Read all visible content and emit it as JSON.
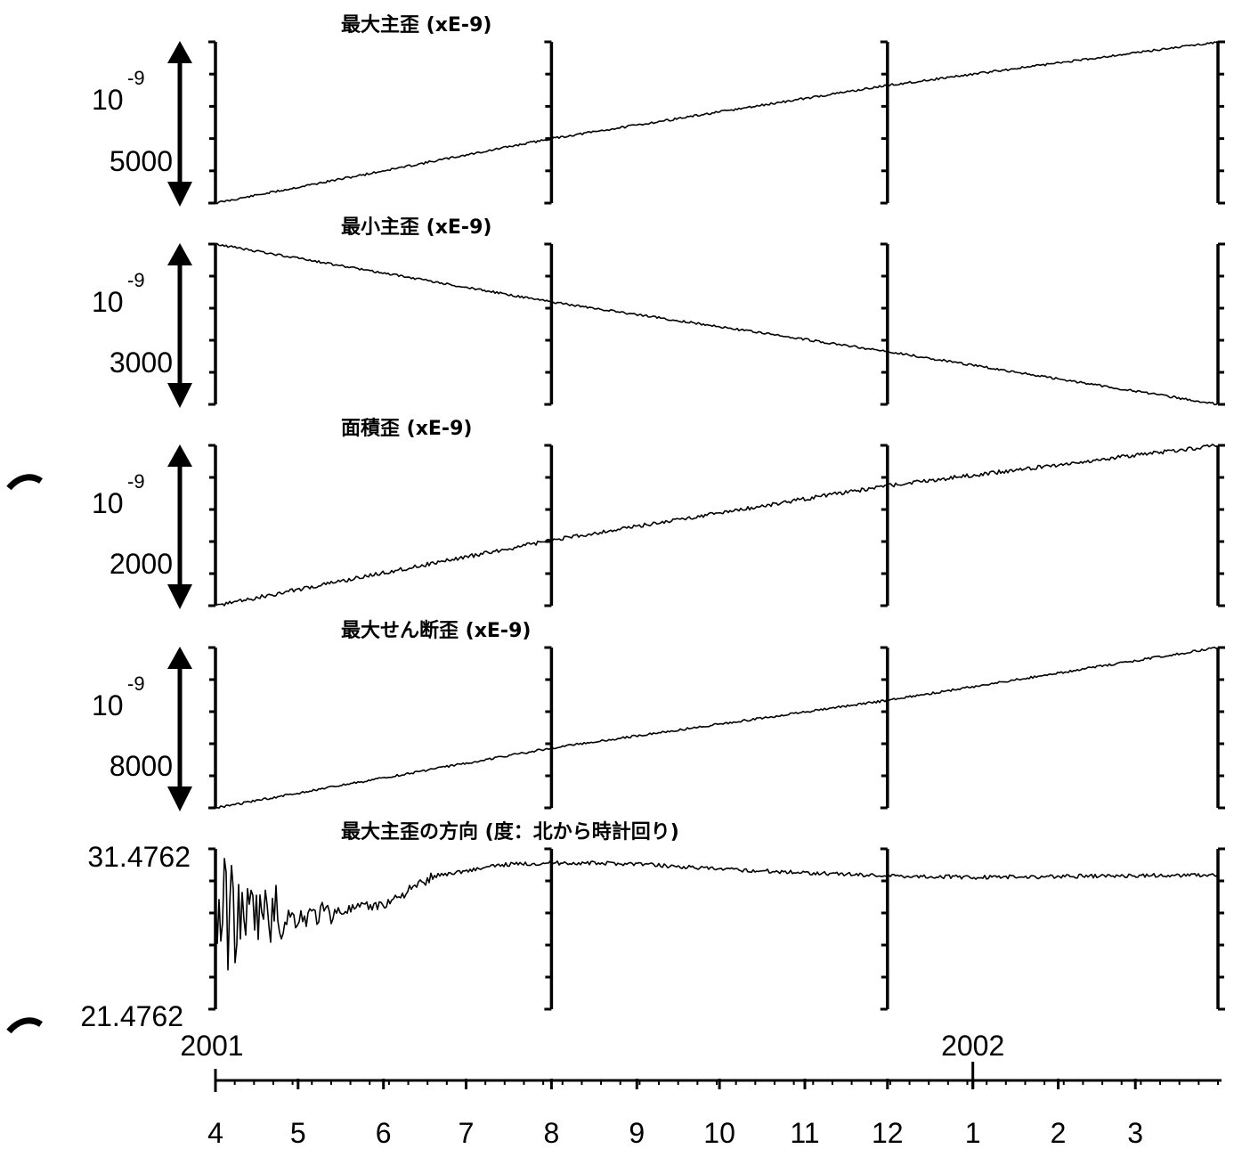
{
  "chart_data": {
    "type": "line",
    "x_unit": "month",
    "x_range": [
      "2001-04",
      "2002-03"
    ],
    "panels": [
      {
        "title": "最大主歪 (xE-9)",
        "scale_prefix": "10",
        "scale_exp": "-9",
        "scale_value": "5000",
        "series": [
          {
            "values": [
              [
                "2001-04-01",
                0
              ],
              [
                "2001-08-01",
                4000
              ],
              [
                "2001-12-01",
                7300
              ],
              [
                "2002-03-31",
                10000
              ]
            ]
          }
        ]
      },
      {
        "title": "最小主歪 (xE-9)",
        "scale_prefix": "10",
        "scale_exp": "-9",
        "scale_value": "3000",
        "series": [
          {
            "values": [
              [
                "2001-04-01",
                0
              ],
              [
                "2001-08-01",
                -3400
              ],
              [
                "2001-12-01",
                -6300
              ],
              [
                "2002-03-31",
                -9400
              ]
            ]
          }
        ]
      },
      {
        "title": "面積歪 (xE-9)",
        "scale_prefix": "10",
        "scale_exp": "-9",
        "scale_value": "2000",
        "series": [
          {
            "values": [
              [
                "2001-04-01",
                0
              ],
              [
                "2001-08-01",
                1560
              ],
              [
                "2001-12-01",
                2860
              ],
              [
                "2002-03-31",
                3820
              ]
            ]
          }
        ]
      },
      {
        "title": "最大せん断歪 (xE-9)",
        "scale_prefix": "10",
        "scale_exp": "-9",
        "scale_value": "8000",
        "series": [
          {
            "values": [
              [
                "2001-04-01",
                0
              ],
              [
                "2001-08-01",
                5900
              ],
              [
                "2001-12-01",
                10600
              ],
              [
                "2002-03-31",
                15800
              ]
            ]
          }
        ]
      },
      {
        "title": "最大主歪の方向 (度：北から時計回り)",
        "ylim": [
          21.4762,
          31.4762
        ],
        "ytick_labels": [
          "31.4762",
          "21.4762"
        ],
        "series": [
          {
            "values": [
              [
                "2001-04-01",
                27.5
              ],
              [
                "2001-05-01",
                27.2
              ],
              [
                "2001-06-01",
                28.0
              ],
              [
                "2001-06-20",
                29.8
              ],
              [
                "2001-07-15",
                30.5
              ],
              [
                "2001-08-01",
                30.6
              ],
              [
                "2001-09-01",
                30.55
              ],
              [
                "2001-10-01",
                30.2
              ],
              [
                "2001-12-01",
                29.8
              ],
              [
                "2002-01-01",
                29.7
              ],
              [
                "2002-03-31",
                29.85
              ]
            ]
          }
        ]
      }
    ],
    "x_axis": {
      "year_labels": [
        "2001",
        "2002"
      ],
      "month_labels": [
        "4",
        "5",
        "6",
        "7",
        "8",
        "9",
        "10",
        "11",
        "12",
        "1",
        "2",
        "3"
      ]
    },
    "grid": false,
    "legend": "none"
  }
}
